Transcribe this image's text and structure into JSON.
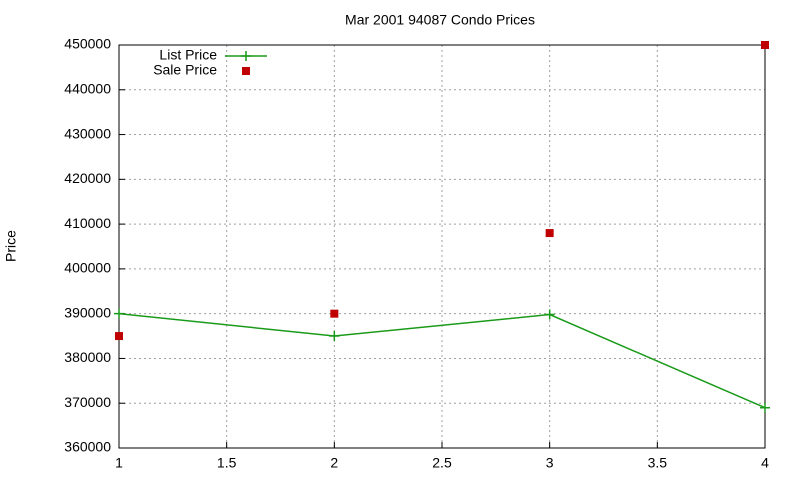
{
  "chart_data": {
    "type": "line",
    "title": "Mar 2001 94087 Condo Prices",
    "ylabel": "Price",
    "x": [
      1,
      2,
      3,
      4
    ],
    "series": [
      {
        "name": "List Price",
        "color": "#1a9a1a",
        "style": "linespoints",
        "values": [
          390000,
          385000,
          389800,
          369000
        ]
      },
      {
        "name": "Sale Price",
        "color": "#c00000",
        "style": "points",
        "values": [
          385000,
          390000,
          408000,
          450000
        ]
      }
    ],
    "xlim": [
      1,
      4
    ],
    "xticks": [
      1,
      1.5,
      2,
      2.5,
      3,
      3.5,
      4
    ],
    "ylim": [
      360000,
      450000
    ],
    "yticks": [
      360000,
      370000,
      380000,
      390000,
      400000,
      410000,
      420000,
      430000,
      440000,
      450000
    ],
    "grid": true,
    "legend": "top-left"
  }
}
